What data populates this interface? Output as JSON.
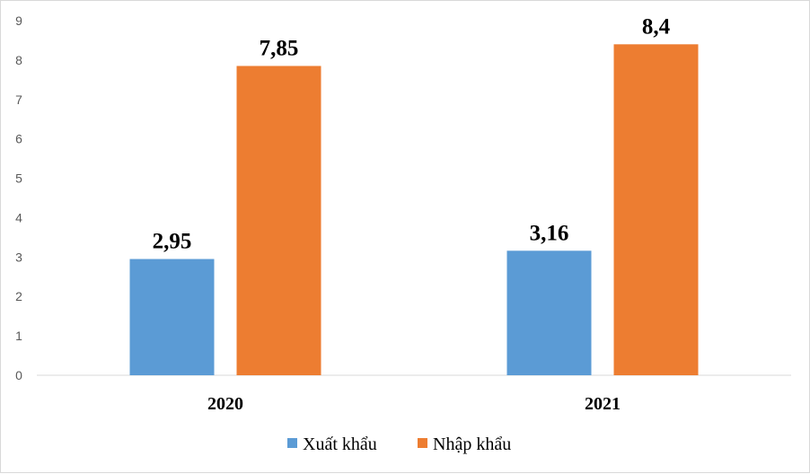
{
  "chart_data": {
    "type": "bar",
    "categories": [
      "2020",
      "2021"
    ],
    "series": [
      {
        "name": "Xuất khẩu",
        "values": [
          2.95,
          3.16
        ],
        "labels": [
          "2,95",
          "3,16"
        ],
        "color": "#5B9BD5"
      },
      {
        "name": "Nhập khẩu",
        "values": [
          7.85,
          8.4
        ],
        "labels": [
          "7,85",
          "8,4"
        ],
        "color": "#ED7D31"
      }
    ],
    "yticks": [
      "0",
      "1",
      "2",
      "3",
      "4",
      "5",
      "6",
      "7",
      "8",
      "9"
    ],
    "ylim": [
      0,
      9
    ],
    "grid": false,
    "legend": "bottom"
  }
}
